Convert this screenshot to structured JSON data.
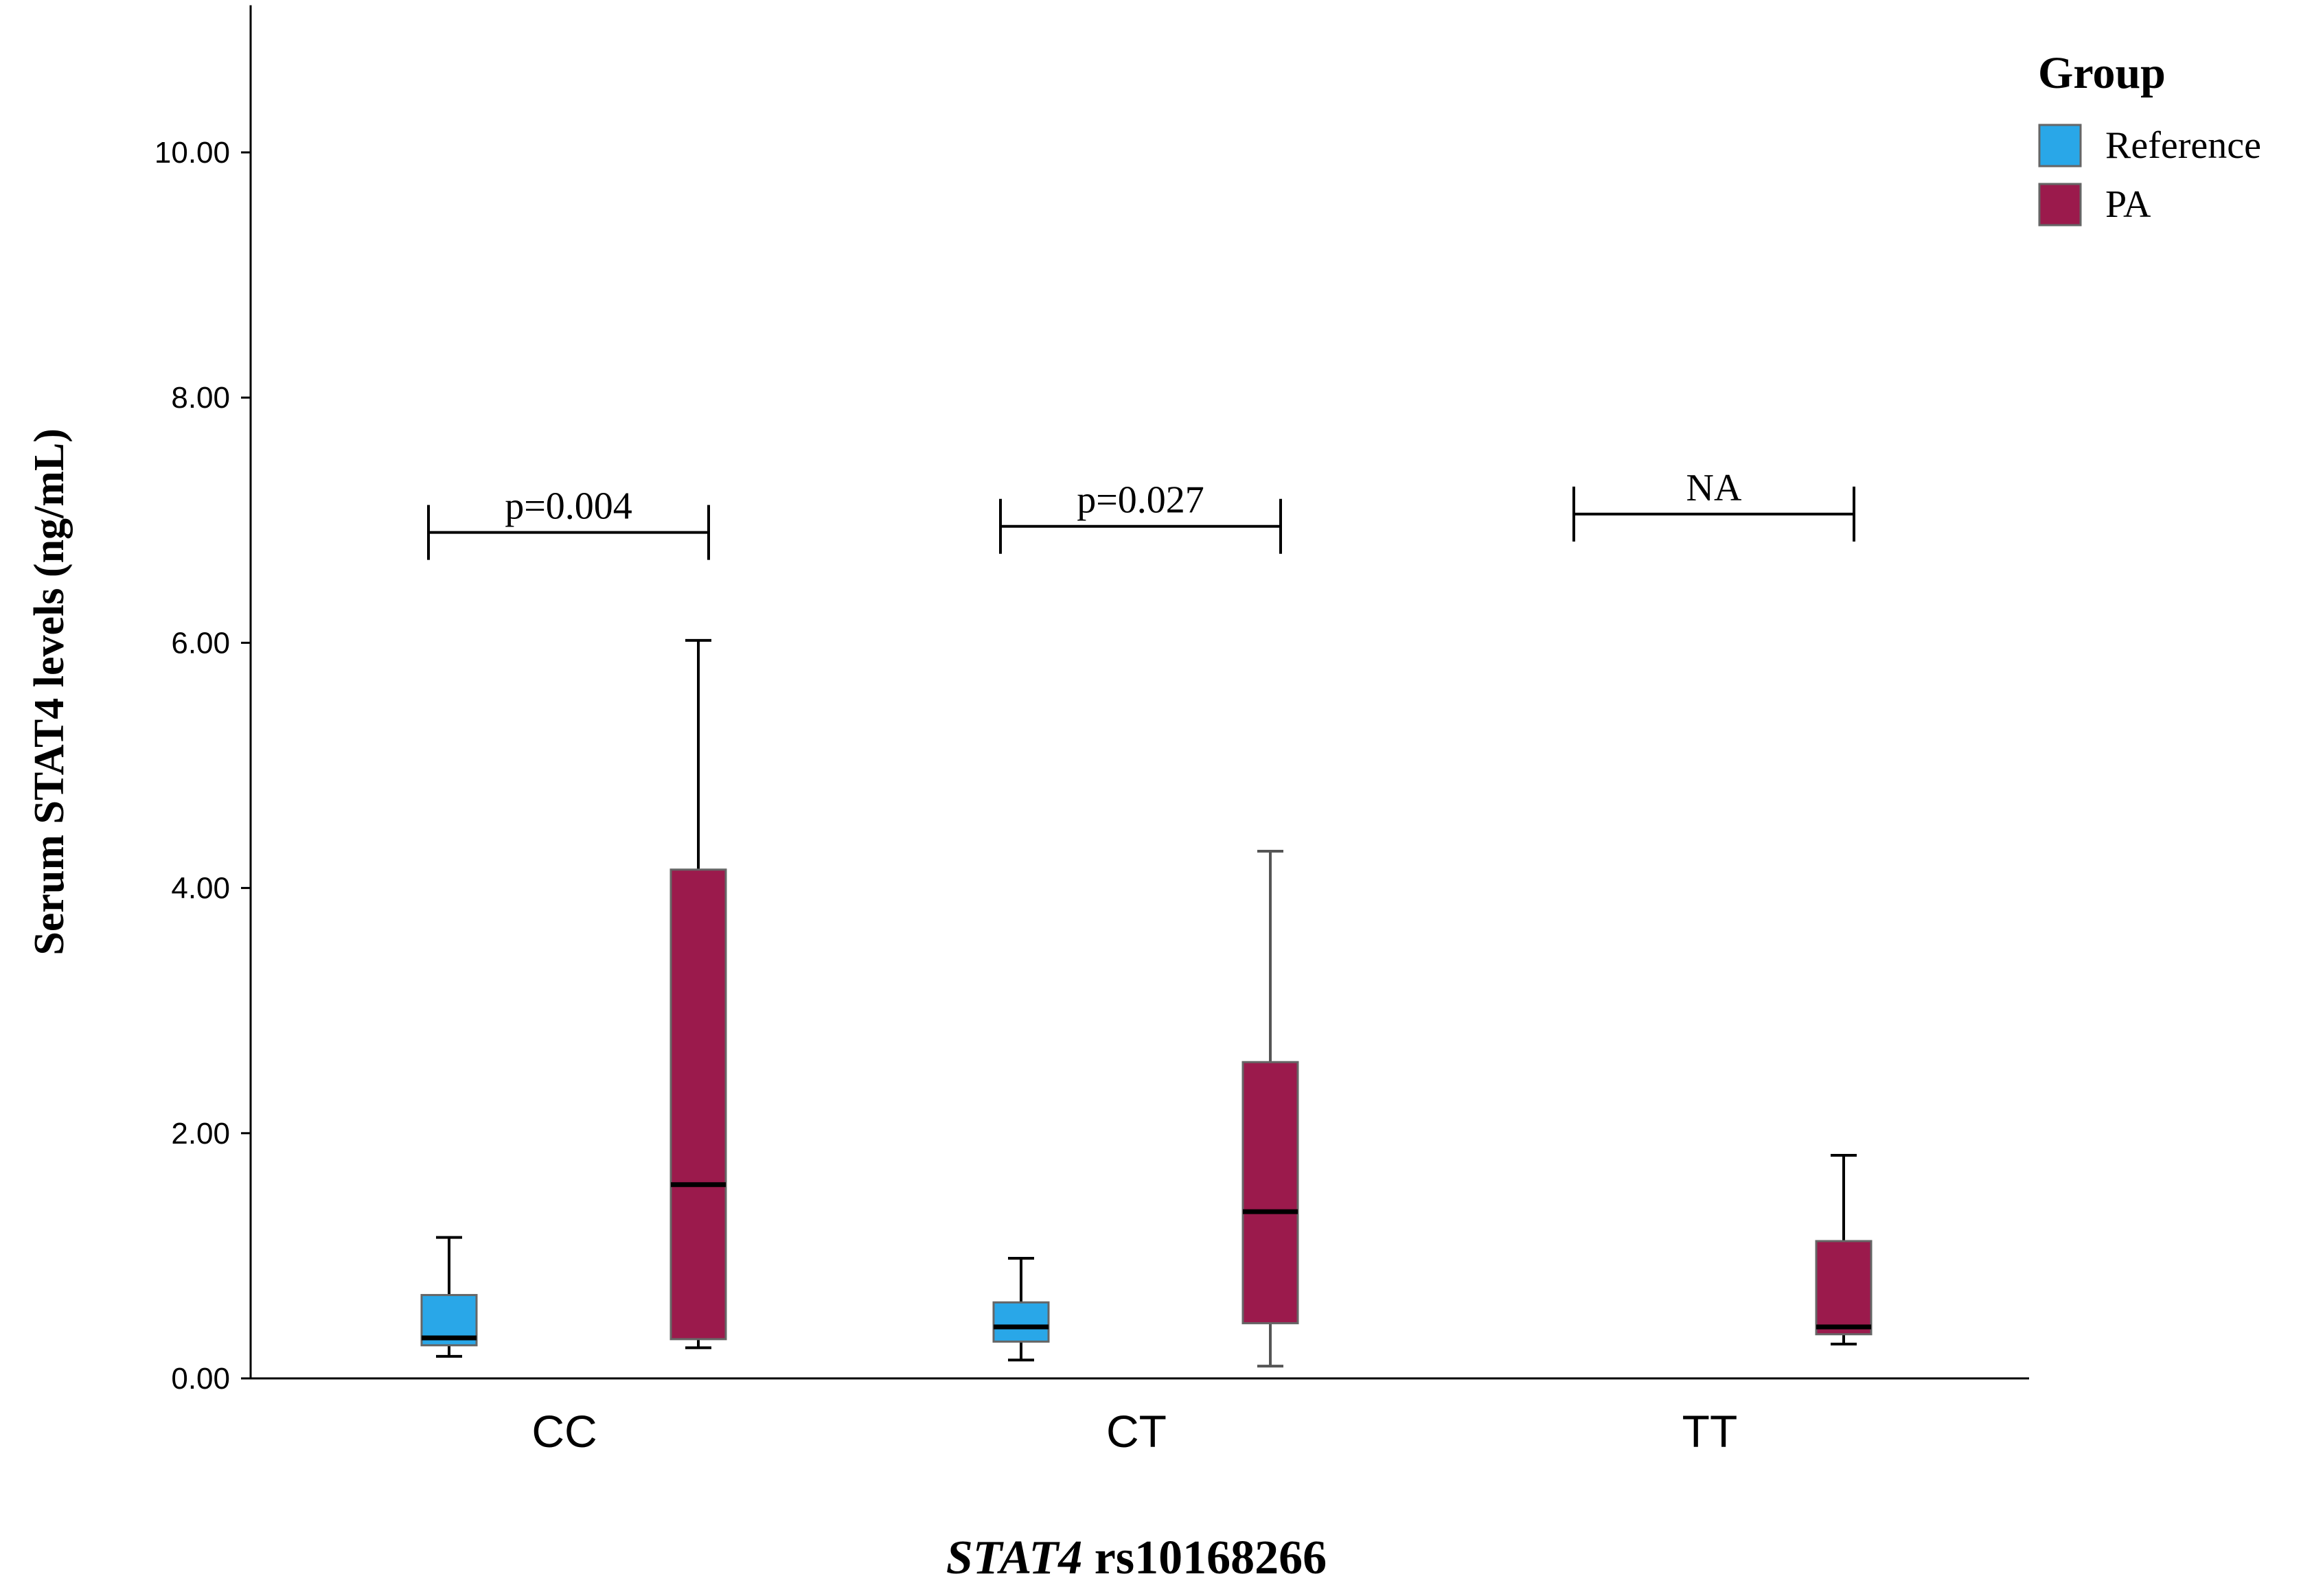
{
  "chart_data": {
    "type": "boxplot",
    "title": "",
    "ylabel": "Serum STAT4 levels (ng/mL)",
    "xlabel": {
      "italic_part": "STAT4",
      "rest": " rs10168266"
    },
    "ylim": [
      0,
      11.2
    ],
    "yticks": [
      0,
      2,
      4,
      6,
      8,
      10
    ],
    "ytick_labels": [
      "0.00",
      "2.00",
      "4.00",
      "6.00",
      "8.00",
      "10.00"
    ],
    "categories": [
      "CC",
      "CT",
      "TT"
    ],
    "legend": {
      "title": "Group",
      "position": "top-right",
      "entries": [
        {
          "name": "Reference",
          "color": "#29a7e8"
        },
        {
          "name": "PA",
          "color": "#9b1a4c"
        }
      ]
    },
    "series": [
      {
        "name": "Reference",
        "color": "#29a7e8",
        "boxes": [
          {
            "category": "CC",
            "min": 0.18,
            "q1": 0.27,
            "median": 0.33,
            "q3": 0.68,
            "max": 1.15
          },
          {
            "category": "CT",
            "min": 0.15,
            "q1": 0.3,
            "median": 0.42,
            "q3": 0.62,
            "max": 0.98
          },
          null
        ]
      },
      {
        "name": "PA",
        "color": "#9b1a4c",
        "boxes": [
          {
            "category": "CC",
            "min": 0.25,
            "q1": 0.32,
            "median": 1.58,
            "q3": 4.15,
            "max": 6.02
          },
          {
            "category": "CT",
            "min": 0.1,
            "q1": 0.45,
            "median": 1.36,
            "q3": 2.58,
            "max": 4.3
          },
          {
            "category": "TT",
            "min": 0.28,
            "q1": 0.36,
            "median": 0.42,
            "q3": 1.12,
            "max": 1.82
          }
        ]
      }
    ],
    "annotations": [
      {
        "category": "CC",
        "text": "p=0.004",
        "y": 6.9
      },
      {
        "category": "CT",
        "text": "p=0.027",
        "y": 6.95
      },
      {
        "category": "TT",
        "text": "NA",
        "y": 7.05
      }
    ]
  }
}
